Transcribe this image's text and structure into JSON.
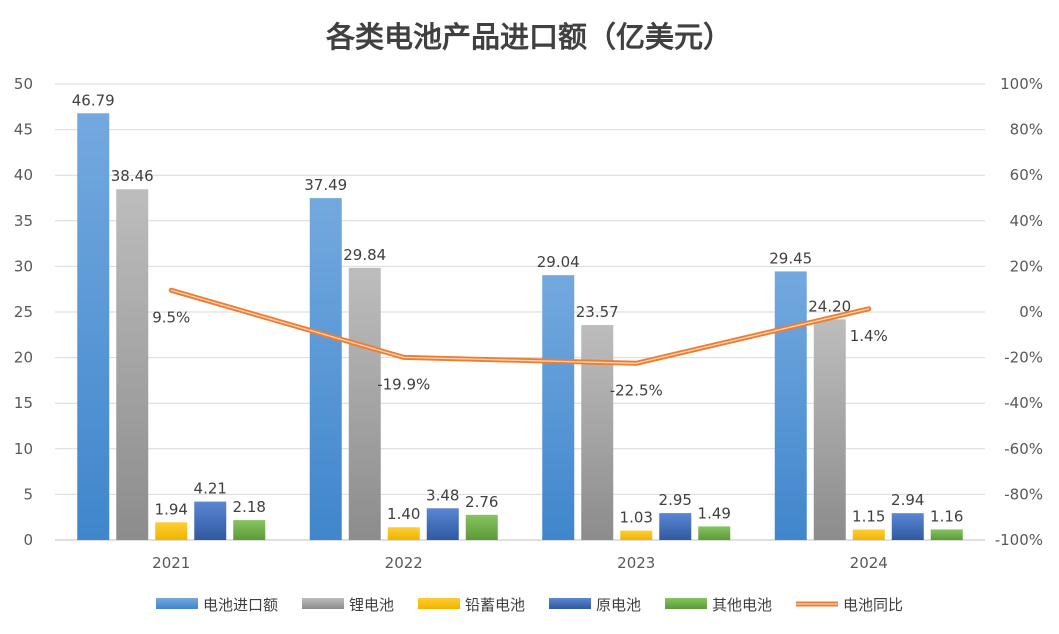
{
  "chart_data": {
    "type": "bar",
    "title": "各类电池产品进口额（亿美元）",
    "categories": [
      "2021",
      "2022",
      "2023",
      "2024"
    ],
    "ylim": [
      0,
      50
    ],
    "yticks": [
      "0",
      "5",
      "10",
      "15",
      "20",
      "25",
      "30",
      "35",
      "40",
      "45",
      "50"
    ],
    "y2lim": [
      -100,
      100
    ],
    "y2ticks": [
      "-100%",
      "-80%",
      "-60%",
      "-40%",
      "-20%",
      "0%",
      "20%",
      "40%",
      "60%",
      "80%",
      "100%"
    ],
    "series": [
      {
        "name": "电池进口额",
        "values": [
          46.79,
          37.49,
          29.04,
          29.45
        ],
        "labels": [
          "46.79",
          "37.49",
          "29.04",
          "29.45"
        ],
        "color": "#5B9BD5"
      },
      {
        "name": "锂电池",
        "values": [
          38.46,
          29.84,
          23.57,
          24.2
        ],
        "labels": [
          "38.46",
          "29.84",
          "23.57",
          "24.20"
        ],
        "color": "#A5A5A5"
      },
      {
        "name": "铅蓄电池",
        "values": [
          1.94,
          1.4,
          1.03,
          1.15
        ],
        "labels": [
          "1.94",
          "1.40",
          "1.03",
          "1.15"
        ],
        "color": "#FFC000"
      },
      {
        "name": "原电池",
        "values": [
          4.21,
          3.48,
          2.95,
          2.94
        ],
        "labels": [
          "4.21",
          "3.48",
          "2.95",
          "2.94"
        ],
        "color": "#4472C4"
      },
      {
        "name": "其他电池",
        "values": [
          2.18,
          2.76,
          1.49,
          1.16
        ],
        "labels": [
          "2.18",
          "2.76",
          "1.49",
          "1.16"
        ],
        "color": "#70AD47"
      }
    ],
    "line_series": {
      "name": "电池同比",
      "axis": "secondary",
      "values": [
        9.5,
        -19.9,
        -22.5,
        1.4
      ],
      "labels": [
        "9.5%",
        "-19.9%",
        "-22.5%",
        "1.4%"
      ],
      "color": "#ED7D31"
    },
    "legend_position": "bottom",
    "grid": true
  }
}
